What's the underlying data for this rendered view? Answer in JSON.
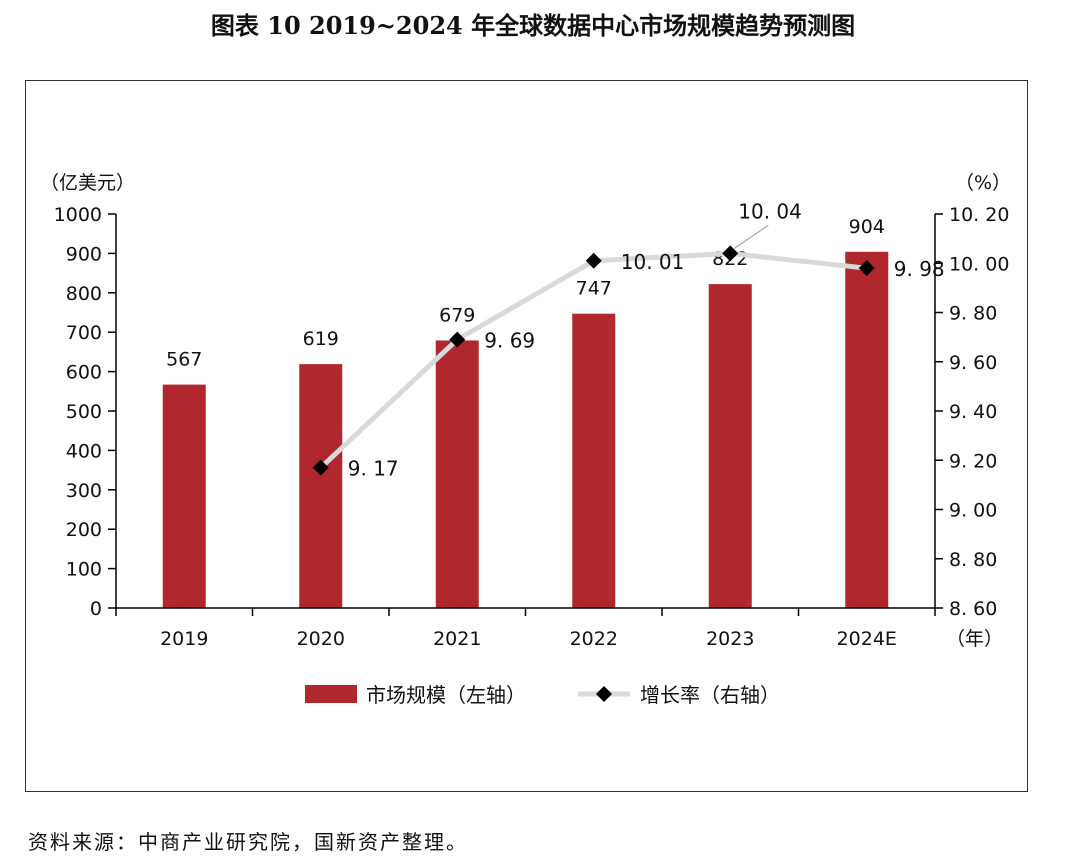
{
  "page": {
    "title": "图表 10  2019~2024 年全球数据中心市场规模趋势预测图",
    "source": "资料来源：中商产业研究院，国新资产整理。"
  },
  "chart_data": {
    "type": "bar+line",
    "categories": [
      "2019",
      "2020",
      "2021",
      "2022",
      "2023",
      "2024E"
    ],
    "series": [
      {
        "name": "市场规模（左轴）",
        "type": "bar",
        "axis": "left",
        "values": [
          567,
          619,
          679,
          747,
          822,
          904
        ],
        "color": "#b0272e"
      },
      {
        "name": "增长率（右轴）",
        "type": "line",
        "axis": "right",
        "values": [
          null,
          9.17,
          9.69,
          10.01,
          10.04,
          9.98
        ],
        "labels": [
          "",
          "9. 17",
          "9. 69",
          "10. 01",
          "10. 04",
          "9. 98"
        ],
        "line_color": "#d9d9d9",
        "marker_color": "#000000"
      }
    ],
    "left_axis": {
      "unit": "（亿美元）",
      "ylim": [
        0,
        1000
      ],
      "ticks": [
        0,
        100,
        200,
        300,
        400,
        500,
        600,
        700,
        800,
        900,
        1000
      ],
      "tick_labels": [
        "0",
        "100",
        "200",
        "300",
        "400",
        "500",
        "600",
        "700",
        "800",
        "900",
        "1000"
      ]
    },
    "right_axis": {
      "unit": "（%）",
      "ylim": [
        8.6,
        10.2
      ],
      "ticks": [
        8.6,
        8.8,
        9.0,
        9.2,
        9.4,
        9.6,
        9.8,
        10.0,
        10.2
      ],
      "tick_labels": [
        "8. 60",
        "8. 80",
        "9. 00",
        "9. 20",
        "9. 40",
        "9. 60",
        "9. 80",
        "10. 00",
        "10. 20"
      ]
    },
    "x_axis": {
      "unit": "（年）"
    },
    "legend": {
      "position": "bottom"
    },
    "grid": false
  }
}
